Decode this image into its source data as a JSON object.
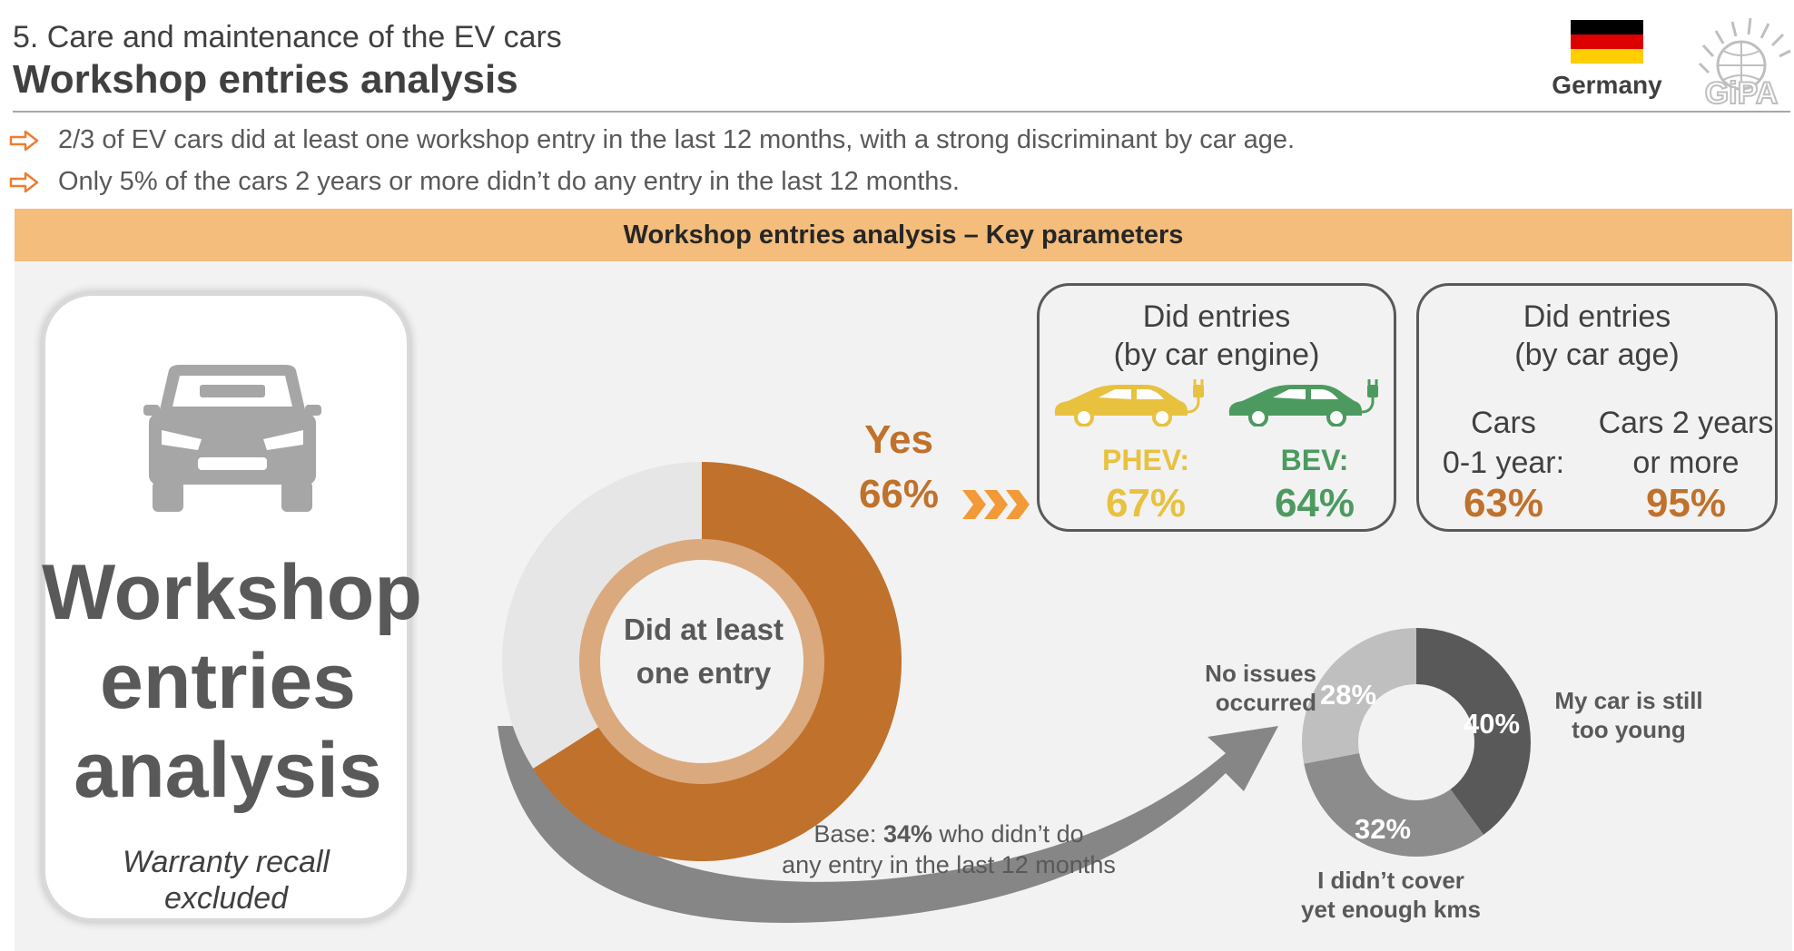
{
  "header": {
    "subtitle": "5. Care and maintenance of the EV cars",
    "title": "Workshop entries analysis",
    "country": "Germany",
    "logo_text": "GiPA",
    "flag_colors": [
      "#000000",
      "#dd0000",
      "#ffce00"
    ]
  },
  "bullets": [
    "2/3 of EV cars did at least one workshop entry in the last 12 months, with a strong discriminant by car age.",
    "Only 5% of the cars 2 years or more didn’t do any entry in the last 12 months."
  ],
  "band": {
    "label": "Workshop entries analysis – Key parameters"
  },
  "card": {
    "icon": "car-front-icon",
    "title_lines": [
      "Workshop",
      "entries",
      "analysis"
    ],
    "note_lines": [
      "Warranty recall",
      "excluded"
    ]
  },
  "colors": {
    "accent": "#c0712b",
    "phev": "#e8c13f",
    "bev": "#4c9a5f",
    "band": "#f4bd7b",
    "donut_rest": "#e6e6e6"
  },
  "main": {
    "center_lines": [
      "Did at least",
      "one entry"
    ],
    "yes_word": "Yes",
    "yes_pct": "66%"
  },
  "engine_box": {
    "title_lines": [
      "Did entries",
      "(by car engine)"
    ],
    "items": [
      {
        "label": "PHEV:",
        "value": "67%",
        "icon": "plug-in-hybrid-car-icon"
      },
      {
        "label": "BEV:",
        "value": "64%",
        "icon": "electric-car-icon"
      }
    ]
  },
  "age_box": {
    "title_lines": [
      "Did entries",
      "(by car age)"
    ],
    "items": [
      {
        "label_lines": [
          "Cars",
          "0-1 year:"
        ],
        "value": "63%"
      },
      {
        "label_lines": [
          "Cars 2 years",
          "or more"
        ],
        "value": "95%"
      }
    ]
  },
  "base_note": {
    "prefix": "Base: ",
    "bold": "34%",
    "rest": " who didn’t do",
    "line2": "any entry in the last 12 months"
  },
  "chart_data": [
    {
      "type": "pie",
      "categories": [
        "Yes",
        ""
      ],
      "values": [
        66,
        34
      ],
      "colors": [
        "#c0712b",
        "#e6e6e6"
      ],
      "labels": [
        "Yes 66%"
      ]
    },
    {
      "type": "pie",
      "categories": [
        "My car is still too young",
        "I didn’t cover yet enough kms",
        "No issues occurred"
      ],
      "values": [
        40,
        32,
        28
      ],
      "value_labels": [
        "40%",
        "32%",
        "28%"
      ],
      "colors": [
        "#595959",
        "#8c8c8c",
        "#bfbfbf"
      ],
      "category_lines": [
        [
          "My car is still",
          "too young"
        ],
        [
          "I didn’t cover",
          "yet enough kms"
        ],
        [
          "No issues",
          "occurred"
        ]
      ]
    }
  ]
}
